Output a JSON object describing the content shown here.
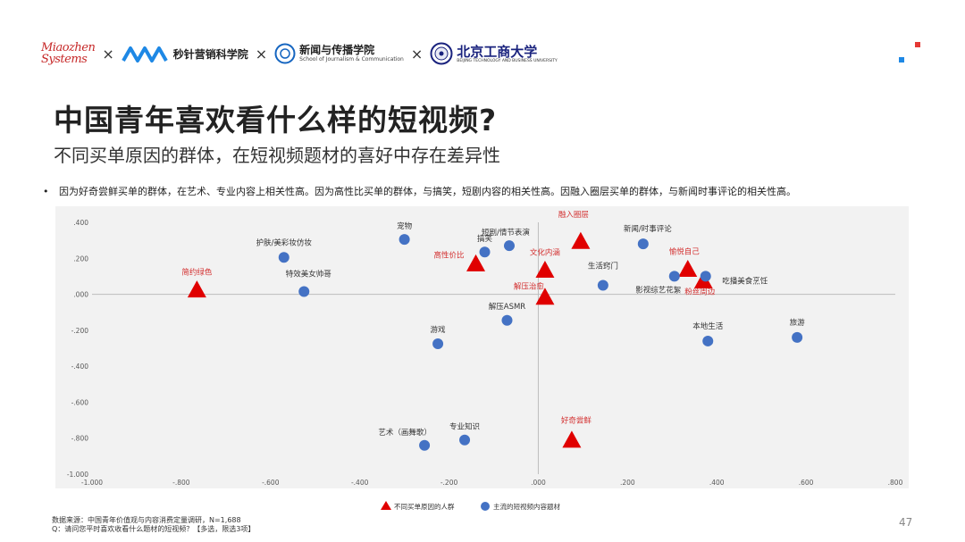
{
  "header": {
    "logo_miaozhen_line1": "Miaozhen",
    "logo_miaozhen_line2": "Systems",
    "times_symbol": "×",
    "logo_mz_text": "秒针营销科学院",
    "school_name": "新闻与传播学院",
    "school_sub": "School of Journalism & Communication",
    "btbu_name": "北京工商大学",
    "btbu_sub": "BEIJING TECHNOLOGY AND BUSINESS UNIVERSITY"
  },
  "title": "中国青年喜欢看什么样的短视频?",
  "subtitle": "不同买单原因的群体，在短视频题材的喜好中存在差异性",
  "bullet": "因为好奇尝鲜买单的群体，在艺术、专业内容上相关性高。因为高性比买单的群体，与搞笑，短剧内容的相关性高。因融入圈层买单的群体，与新闻时事评论的相关性高。",
  "footer": {
    "source": "数据来源：中国青年价值观与内容消费定量调研，N=1,688",
    "question": "Q：请问您平时喜欢收看什么题材的短视频？【多选，限选3项】"
  },
  "page_number": "47",
  "chart_data": {
    "type": "scatter",
    "title": "",
    "xlabel": "",
    "ylabel": "",
    "xlim": [
      -1.0,
      0.8
    ],
    "ylim": [
      -1.0,
      0.4
    ],
    "x_ticks": [
      "-1.000",
      "-.800",
      "-.600",
      "-.400",
      "-.200",
      ".000",
      ".200",
      ".400",
      ".600",
      ".800"
    ],
    "y_ticks": [
      ".400",
      ".200",
      ".000",
      "-.200",
      "-.400",
      "-.600",
      "-.800",
      "-1.000"
    ],
    "x_tick_values": [
      -1.0,
      -0.8,
      -0.6,
      -0.4,
      -0.2,
      0.0,
      0.2,
      0.4,
      0.6,
      0.8
    ],
    "y_tick_values": [
      0.4,
      0.2,
      0.0,
      -0.2,
      -0.4,
      -0.6,
      -0.8,
      -1.0
    ],
    "colors": {
      "triangle": "#e00000",
      "circle": "#4472c4",
      "triangle_label": "#d32f2f",
      "circle_label": "#333333"
    },
    "series": [
      {
        "name": "不同买单原因的人群",
        "marker": "triangle",
        "points": [
          {
            "label": "简约绿色",
            "x": -0.765,
            "y": 0.02
          },
          {
            "label": "高性价比",
            "x": -0.14,
            "y": 0.165
          },
          {
            "label": "融入圈层",
            "x": 0.095,
            "y": 0.29
          },
          {
            "label": "文化内涵",
            "x": 0.015,
            "y": 0.13
          },
          {
            "label": "解压治愈",
            "x": 0.015,
            "y": -0.02
          },
          {
            "label": "好奇尝鲜",
            "x": 0.075,
            "y": -0.815
          },
          {
            "label": "愉悦自己",
            "x": 0.335,
            "y": 0.135
          },
          {
            "label": "粉丝周边",
            "x": 0.37,
            "y": 0.07
          }
        ]
      },
      {
        "name": "主流的短视频内容题材",
        "marker": "circle",
        "points": [
          {
            "label": "护肤/美彩妆仿妆",
            "x": -0.57,
            "y": 0.205
          },
          {
            "label": "特效美女帅哥",
            "x": -0.525,
            "y": 0.015
          },
          {
            "label": "宠物",
            "x": -0.3,
            "y": 0.305
          },
          {
            "label": "搞笑",
            "x": -0.12,
            "y": 0.235
          },
          {
            "label": "短剧/情节表演",
            "x": -0.065,
            "y": 0.27
          },
          {
            "label": "解压ASMR",
            "x": -0.07,
            "y": -0.145
          },
          {
            "label": "游戏",
            "x": -0.225,
            "y": -0.275
          },
          {
            "label": "新闻/时事评论",
            "x": 0.235,
            "y": 0.28
          },
          {
            "label": "生活窍门",
            "x": 0.145,
            "y": 0.05
          },
          {
            "label": "影视综艺花絮",
            "x": 0.305,
            "y": 0.1
          },
          {
            "label": "吃播美食烹饪",
            "x": 0.375,
            "y": 0.1
          },
          {
            "label": "本地生活",
            "x": 0.38,
            "y": -0.26
          },
          {
            "label": "旅游",
            "x": 0.58,
            "y": -0.24
          },
          {
            "label": "艺术（画舞歌）",
            "x": -0.255,
            "y": -0.84
          },
          {
            "label": "专业知识",
            "x": -0.165,
            "y": -0.81
          }
        ]
      }
    ],
    "legend": {
      "position": "bottom-center",
      "triangle_label": "不同买单原因的人群",
      "circle_label": "主流的短视频内容题材"
    }
  }
}
